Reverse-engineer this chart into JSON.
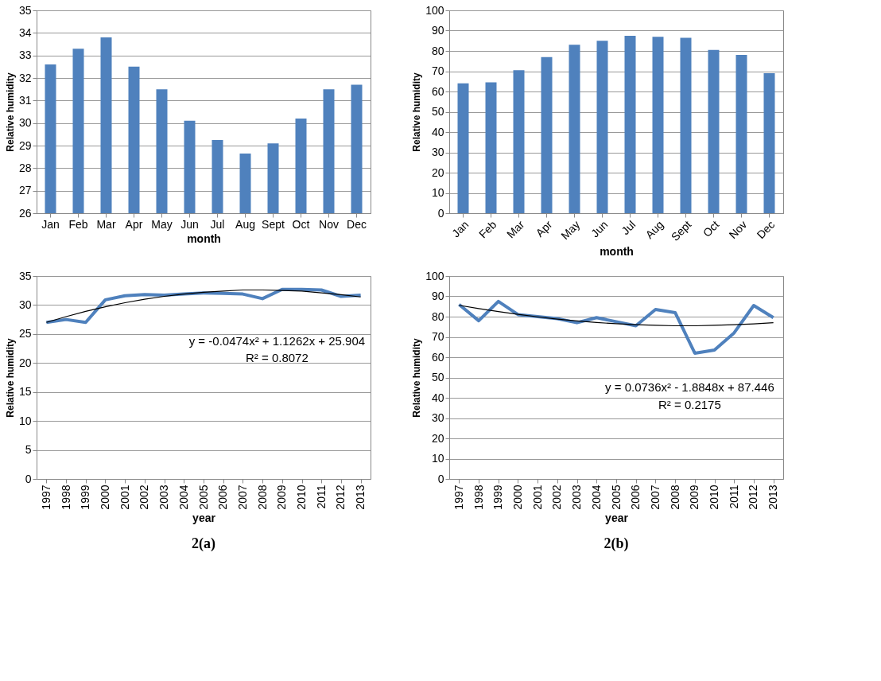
{
  "chart_data": [
    {
      "type": "bar",
      "xlabel": "month",
      "ylabel": "Relative humidity",
      "categories": [
        "Jan",
        "Feb",
        "Mar",
        "Apr",
        "May",
        "Jun",
        "Jul",
        "Aug",
        "Sept",
        "Oct",
        "Nov",
        "Dec"
      ],
      "series": [
        {
          "color": "#4f81bd",
          "values": [
            32.6,
            33.3,
            33.8,
            32.5,
            31.5,
            30.1,
            29.25,
            28.65,
            29.1,
            30.2,
            31.5,
            31.7
          ]
        }
      ],
      "ylim": [
        26,
        35
      ],
      "yticks": [
        26,
        27,
        28,
        29,
        30,
        31,
        32,
        33,
        34,
        35
      ],
      "grid": "y"
    },
    {
      "type": "bar",
      "xlabel": "month",
      "ylabel": "Relative humidity",
      "categories": [
        "Jan",
        "Feb",
        "Mar",
        "Apr",
        "May",
        "Jun",
        "Jul",
        "Aug",
        "Sept",
        "Oct",
        "Nov",
        "Dec"
      ],
      "series": [
        {
          "color": "#4f81bd",
          "values": [
            64,
            64.5,
            70.5,
            77,
            83,
            85,
            87.5,
            87,
            86.5,
            80.5,
            78,
            69
          ]
        }
      ],
      "ylim": [
        0,
        100
      ],
      "yticks": [
        0,
        10,
        20,
        30,
        40,
        50,
        60,
        70,
        80,
        90,
        100
      ],
      "grid": "y"
    },
    {
      "type": "line",
      "xlabel": "year",
      "ylabel": "Relative humidity",
      "categories": [
        "1997",
        "1998",
        "1999",
        "2000",
        "2001",
        "2002",
        "2003",
        "2004",
        "2005",
        "2006",
        "2007",
        "2008",
        "2009",
        "2010",
        "2011",
        "2012",
        "2013"
      ],
      "series": [
        {
          "color": "#4f81bd",
          "values": [
            27.0,
            27.5,
            27.0,
            30.9,
            31.6,
            31.8,
            31.7,
            31.9,
            32.1,
            32.0,
            31.9,
            31.1,
            32.7,
            32.7,
            32.6,
            31.5,
            31.7
          ]
        },
        {
          "color": "#000000",
          "values": [
            27.0,
            28.0,
            28.9,
            29.7,
            30.4,
            31.0,
            31.5,
            31.9,
            32.2,
            32.4,
            32.6,
            32.6,
            32.5,
            32.4,
            32.1,
            31.8,
            31.4
          ]
        }
      ],
      "ylim": [
        0,
        35
      ],
      "yticks": [
        0,
        5,
        10,
        15,
        20,
        25,
        30,
        35
      ],
      "grid": "y",
      "annotations": [
        "y = -0.0474x² + 1.1262x + 25.904",
        "R² = 0.8072",
        "2(a)"
      ]
    },
    {
      "type": "line",
      "xlabel": "year",
      "ylabel": "Relative humidity",
      "categories": [
        "1997",
        "1998",
        "1999",
        "2000",
        "2001",
        "2002",
        "2003",
        "2004",
        "2005",
        "2006",
        "2007",
        "2008",
        "2009",
        "2010",
        "2011",
        "2012",
        "2013"
      ],
      "series": [
        {
          "color": "#4f81bd",
          "values": [
            86,
            78,
            87.5,
            81,
            80,
            79,
            77,
            79.5,
            77.5,
            75.5,
            83.5,
            82,
            62,
            63.5,
            72,
            85.5,
            79.5
          ]
        },
        {
          "color": "#000000",
          "values": [
            85.6,
            84.0,
            82.5,
            81.1,
            79.9,
            78.8,
            77.9,
            77.1,
            76.5,
            76.0,
            75.7,
            75.5,
            75.5,
            75.7,
            76.0,
            76.4,
            77.0
          ]
        }
      ],
      "ylim": [
        0,
        100
      ],
      "yticks": [
        0,
        10,
        20,
        30,
        40,
        50,
        60,
        70,
        80,
        90,
        100
      ],
      "grid": "y",
      "annotations": [
        "y = 0.0736x² - 1.8848x + 87.446",
        "R² = 0.2175",
        "2(b)"
      ]
    }
  ]
}
